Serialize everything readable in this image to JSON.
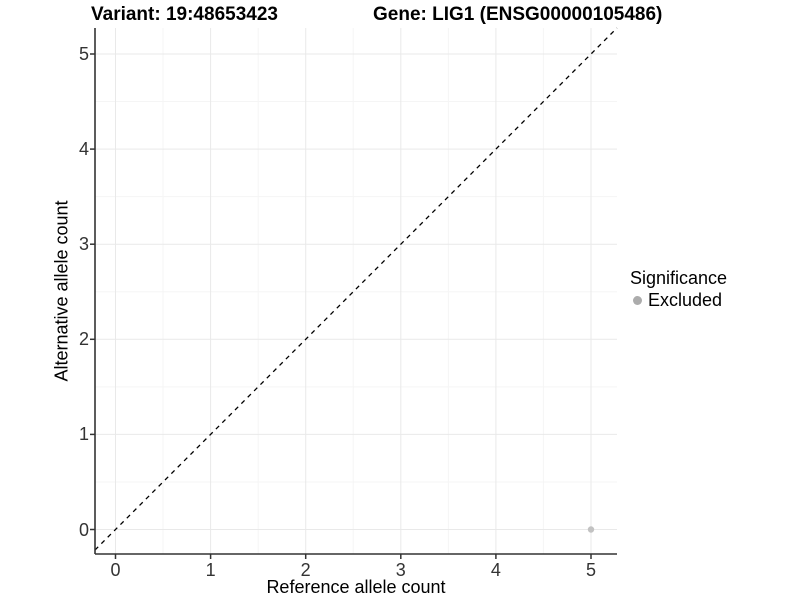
{
  "chart_data": {
    "type": "scatter",
    "title_left": "Variant: 19:48653423",
    "title_right": "Gene: LIG1 (ENSG00000105486)",
    "xlabel": "Reference allele count",
    "ylabel": "Alternative allele count",
    "x_ticks": [
      0,
      1,
      2,
      3,
      4,
      5
    ],
    "y_ticks": [
      0,
      1,
      2,
      3,
      4,
      5
    ],
    "xlim": [
      -0.25,
      5.25
    ],
    "ylim": [
      -0.25,
      5.25
    ],
    "grid": {
      "show": true,
      "major_color": "#e9e9e9",
      "minor_color": "#f5f5f5"
    },
    "axis_color": "#333333",
    "tick_label_color": "#333333",
    "reference_line": {
      "type": "identity y=x",
      "style": "dashed",
      "color": "#000000"
    },
    "series": [
      {
        "name": "Excluded",
        "marker_color": "#c2c2c2",
        "points": [
          [
            5,
            0
          ]
        ]
      }
    ],
    "legend": {
      "title": "Significance",
      "position": "right",
      "entries": [
        {
          "label": "Excluded",
          "marker_color": "#acacac"
        }
      ]
    }
  }
}
